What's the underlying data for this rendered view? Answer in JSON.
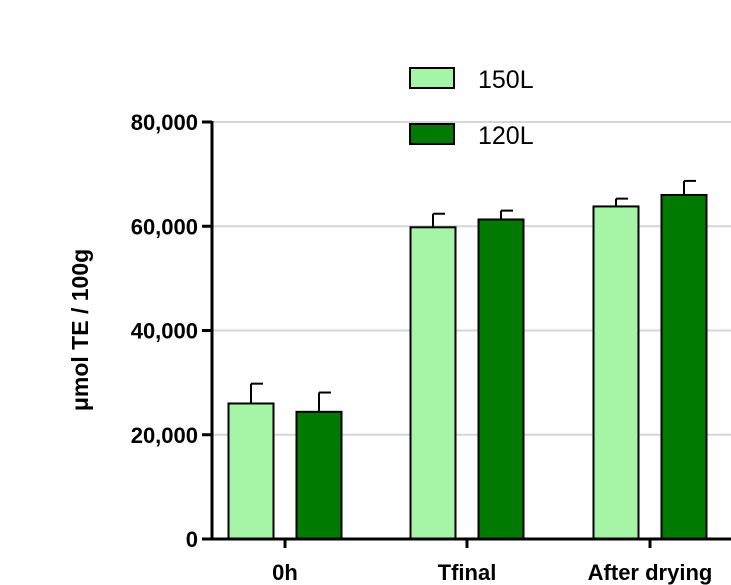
{
  "chart_data": {
    "type": "bar",
    "title": "",
    "xlabel": "",
    "ylabel": "μmol TE / 100g",
    "ylim": [
      0,
      80000
    ],
    "yticks": [
      0,
      20000,
      40000,
      60000,
      80000
    ],
    "ytick_labels": [
      "0",
      "20,000",
      "40,000",
      "60,000",
      "80,000"
    ],
    "grid": true,
    "legend_position": "top-center",
    "categories": [
      "0h",
      "Tfinal",
      "After drying"
    ],
    "series": [
      {
        "name": "150L",
        "color": "#a6f5a6",
        "values": [
          26000,
          59800,
          63800
        ],
        "errors": [
          3800,
          2600,
          1500
        ]
      },
      {
        "name": "120L",
        "color": "#007a00",
        "values": [
          24400,
          61300,
          66000
        ],
        "errors": [
          3700,
          1700,
          2700
        ]
      }
    ]
  }
}
